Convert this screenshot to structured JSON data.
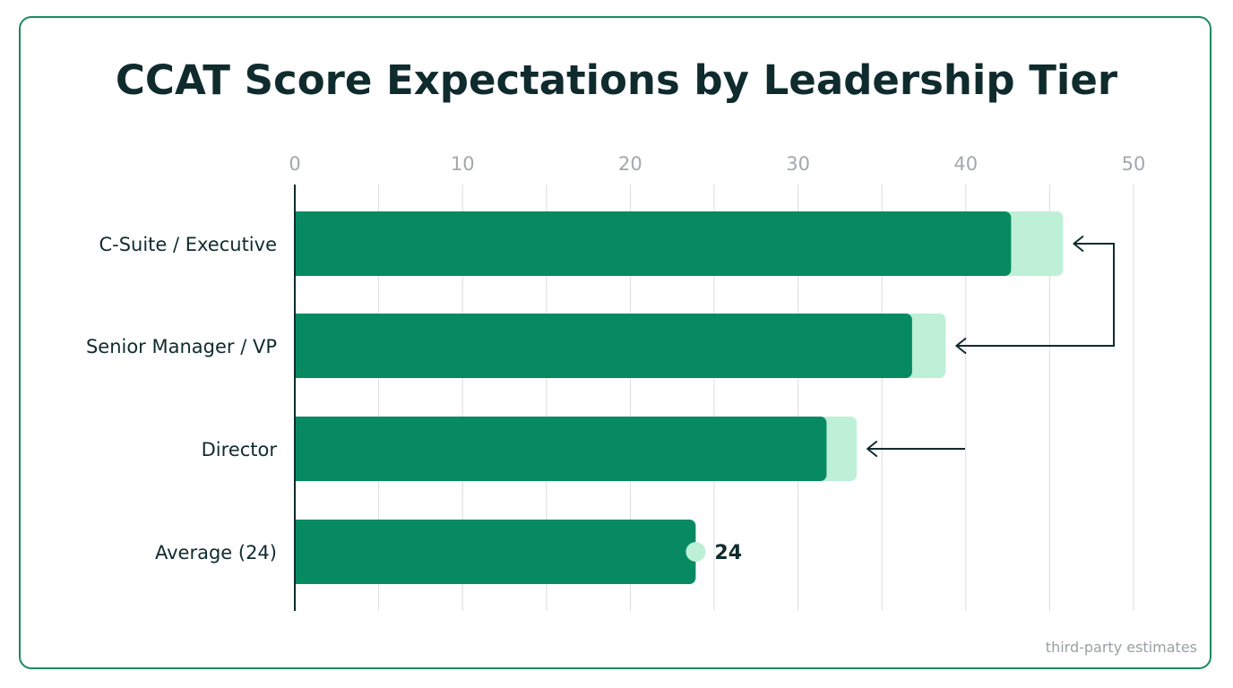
{
  "colors": {
    "bar": "#078a62",
    "range": "#bdf0d6",
    "dot": "#bdf0d6",
    "axis": "#0f2b2e",
    "grid": "#dcdcdc",
    "arrow": "#0f2b2e",
    "frame": "#1b8a5e"
  },
  "footnote": "third-party estimates",
  "chart_data": {
    "type": "bar",
    "orientation": "horizontal",
    "title": "CCAT Score Expectations by Leadership Tier",
    "xlabel": "",
    "ylabel": "",
    "xlim": [
      0,
      50
    ],
    "xticks": [
      0,
      10,
      20,
      30,
      40,
      50
    ],
    "grid": true,
    "categories": [
      "C-Suite / Executive",
      "Senior Manager / VP",
      "Director",
      "Average (24)"
    ],
    "series": [
      {
        "values": [
          42.7,
          36.8,
          31.7,
          23.9
        ]
      },
      {
        "values": [
          45.8,
          38.8,
          33.5,
          null
        ]
      }
    ],
    "annotations": [
      {
        "category": "Average (24)",
        "text": "24"
      }
    ]
  }
}
